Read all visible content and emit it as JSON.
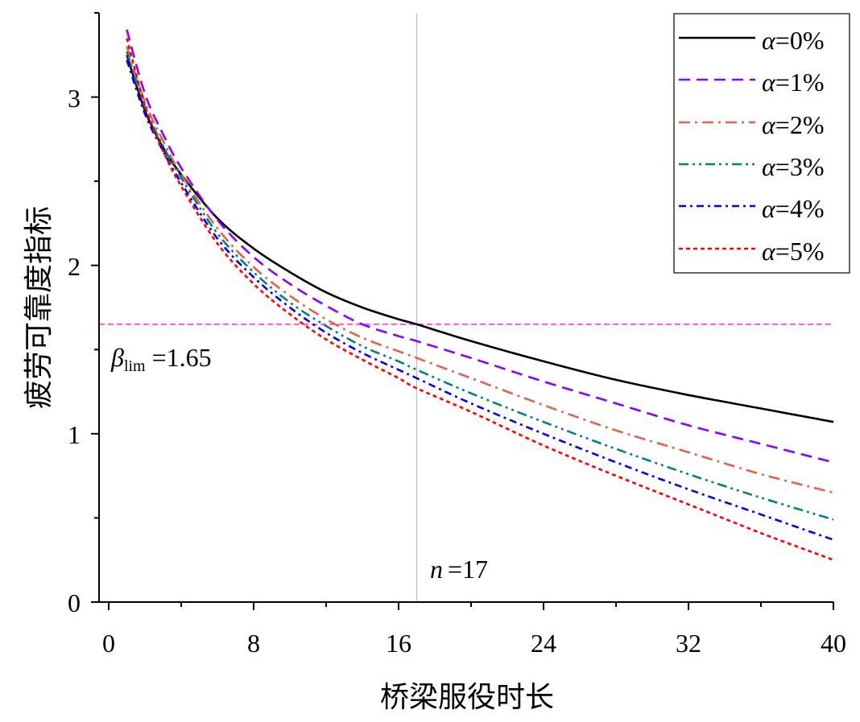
{
  "chart_data": {
    "type": "line",
    "xlabel": "桥梁服役时长",
    "ylabel": "疲劳可靠度指标",
    "xlim": [
      0,
      40
    ],
    "ylim": [
      0,
      3.5
    ],
    "x_ticks": [
      "0",
      "8",
      "16",
      "24",
      "32",
      "40"
    ],
    "y_ticks": [
      "0",
      "1",
      "2",
      "3"
    ],
    "legend_position": "top-right",
    "x": [
      1,
      2,
      3,
      4,
      6,
      8,
      10,
      12,
      14,
      16,
      17,
      20,
      24,
      28,
      32,
      36,
      40
    ],
    "series": [
      {
        "name": "α=0%",
        "label_symbol": "α",
        "label_value": "=0%",
        "color": "#000000",
        "dash": "solid",
        "values": [
          3.25,
          2.92,
          2.7,
          2.54,
          2.28,
          2.1,
          1.96,
          1.84,
          1.75,
          1.68,
          1.65,
          1.55,
          1.43,
          1.32,
          1.23,
          1.15,
          1.07
        ]
      },
      {
        "name": "α=1%",
        "label_symbol": "α",
        "label_value": "=1%",
        "color": "#8B00FF",
        "dash": "dash",
        "values": [
          3.4,
          3.02,
          2.78,
          2.58,
          2.27,
          2.05,
          1.89,
          1.76,
          1.65,
          1.58,
          1.55,
          1.45,
          1.31,
          1.18,
          1.05,
          0.94,
          0.83
        ]
      },
      {
        "name": "α=2%",
        "label_symbol": "α",
        "label_value": "=2%",
        "color": "#E0634A",
        "dash": "dashdot",
        "values": [
          3.3,
          2.97,
          2.74,
          2.54,
          2.22,
          1.99,
          1.82,
          1.68,
          1.57,
          1.49,
          1.45,
          1.33,
          1.17,
          1.02,
          0.89,
          0.76,
          0.65
        ]
      },
      {
        "name": "α=3%",
        "label_symbol": "α",
        "label_value": "=3%",
        "color": "#008080",
        "dash": "dashdotdot",
        "values": [
          3.27,
          2.94,
          2.71,
          2.52,
          2.19,
          1.96,
          1.78,
          1.64,
          1.52,
          1.43,
          1.38,
          1.24,
          1.07,
          0.91,
          0.76,
          0.62,
          0.49
        ]
      },
      {
        "name": "α=4%",
        "label_symbol": "α",
        "label_value": "=4%",
        "color": "#0000EE",
        "dash": "dashdot2",
        "values": [
          3.22,
          2.9,
          2.68,
          2.49,
          2.16,
          1.93,
          1.75,
          1.6,
          1.48,
          1.38,
          1.33,
          1.18,
          1.0,
          0.83,
          0.67,
          0.52,
          0.37
        ]
      },
      {
        "name": "α=5%",
        "label_symbol": "α",
        "label_value": "=5%",
        "color": "#FF0000",
        "dash": "dot",
        "values": [
          3.35,
          2.95,
          2.68,
          2.47,
          2.13,
          1.89,
          1.71,
          1.56,
          1.44,
          1.33,
          1.27,
          1.13,
          0.93,
          0.75,
          0.58,
          0.41,
          0.25
        ]
      }
    ],
    "reference_lines": {
      "horizontal": {
        "y": 1.65,
        "color": "#FF33FF"
      },
      "vertical": {
        "x": 17,
        "color": "#BBBBBB"
      }
    },
    "annotations": {
      "beta": {
        "symbol": "β",
        "subscript": "lim",
        "value": "=1.65"
      },
      "n": {
        "symbol": "n",
        "value": "=17"
      }
    }
  }
}
